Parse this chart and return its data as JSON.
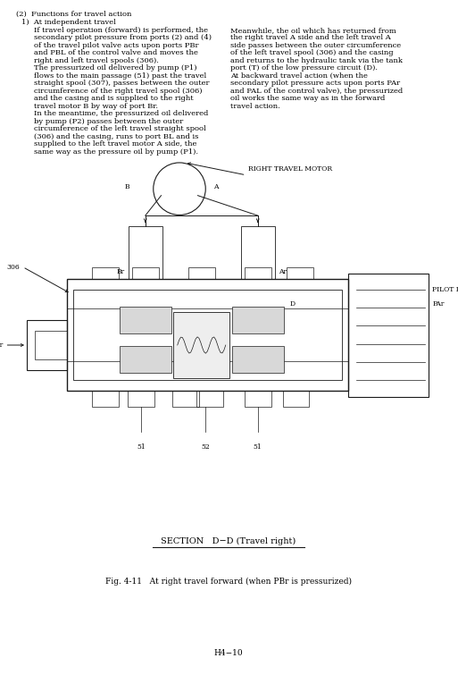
{
  "bg_color": "#ffffff",
  "page_number": "H4−10",
  "section_label": "SECTION   D−D (Travel right)",
  "fig_caption": "Fig. 4-11   At right travel forward (when PBr is pressurized)",
  "heading1": "(2)  Functions for travel action",
  "heading2": "1)  At independent travel",
  "left_col_lines": [
    "If travel operation (forward) is performed, the",
    "secondary pilot pressure from ports (2) and (4)",
    "of the travel pilot valve acts upon ports PBr",
    "and PBL of the control valve and moves the",
    "right and left travel spools (306).",
    "The pressurized oil delivered by pump (P1)",
    "flows to the main passage (51) past the travel",
    "straight spool (307), passes between the outer",
    "circumference of the right travel spool (306)",
    "and the casing and is supplied to the right",
    "travel motor B by way of port Br.",
    "In the meantime, the pressurized oil delivered",
    "by pump (P2) passes between the outer",
    "circumference of the left travel straight spool",
    "(306) and the casing, runs to port BL and is",
    "supplied to the left travel motor A side, the",
    "same way as the pressure oil by pump (P1)."
  ],
  "right_col_lines": [
    "Meanwhile, the oil which has returned from",
    "the right travel A side and the left travel A",
    "side passes between the outer circumference",
    "of the left travel spool (306) and the casing",
    "and returns to the hydraulic tank via the tank",
    "port (T) of the low pressure circuit (D).",
    "At backward travel action (when the",
    "secondary pilot pressure acts upon ports PAr",
    "and PAL of the control valve), the pressurized",
    "oil works the same way as in the forward",
    "travel action."
  ],
  "diagram_title": "RIGHT TRAVEL MOTOR",
  "lw_main": 0.7,
  "lw_thick": 1.0,
  "color_line": "#1a1a1a",
  "body_fs": 6.0,
  "label_fs": 5.5,
  "section_fs": 7.0,
  "caption_fs": 6.5,
  "page_fs": 6.5
}
